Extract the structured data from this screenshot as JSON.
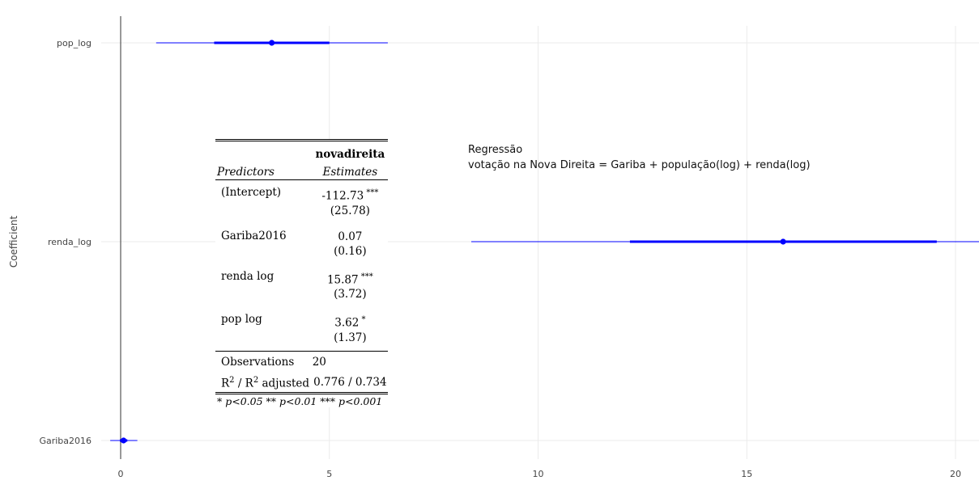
{
  "chart_data": {
    "type": "scatter",
    "title": "",
    "ylabel": "Coefficient",
    "xlabel": "",
    "xlim": [
      -0.25,
      20.6
    ],
    "xticks": [
      0,
      5,
      10,
      15,
      20
    ],
    "xtick_labels": [
      "0",
      "5",
      "10",
      "15",
      "20"
    ],
    "grid": true,
    "reference_line_x": 0,
    "series_color": "#0000ff",
    "coefficients": [
      {
        "term": "pop_log",
        "estimate": 3.62,
        "ci90": [
          2.24,
          5.0
        ],
        "ci95": [
          0.85,
          6.4
        ]
      },
      {
        "term": "renda_log",
        "estimate": 15.87,
        "ci90": [
          12.2,
          19.55
        ],
        "ci95": [
          8.4,
          20.6
        ]
      },
      {
        "term": "Gariba2016",
        "estimate": 0.07,
        "ci90": [
          -0.02,
          0.16
        ],
        "ci95": [
          -0.25,
          0.4
        ]
      }
    ]
  },
  "annotation": {
    "line1": "Regressão",
    "line2": "votação na Nova Direita = Gariba + população(log) + renda(log)"
  },
  "table": {
    "model_name": "novadireita",
    "col_predictors": "Predictors",
    "col_estimates": "Estimates",
    "rows": [
      {
        "label": "(Intercept)",
        "estimate": "-112.73",
        "stars": "***",
        "se": "(25.78)"
      },
      {
        "label": "Gariba2016",
        "estimate": "0.07",
        "stars": "",
        "se": "(0.16)"
      },
      {
        "label": "renda log",
        "estimate": "15.87",
        "stars": "***",
        "se": "(3.72)"
      },
      {
        "label": "pop log",
        "estimate": "3.62",
        "stars": "*",
        "se": "(1.37)"
      }
    ],
    "observations_label": "Observations",
    "observations_value": "20",
    "r2_label_r": "R",
    "r2_label_sup": "2",
    "r2_label_sep": " / R",
    "r2_label_sup2": "2",
    "r2_label_adj": " adjusted",
    "r2_value": "0.776 / 0.734",
    "footnote": "* p<0.05   ** p<0.01   *** p<0.001"
  }
}
